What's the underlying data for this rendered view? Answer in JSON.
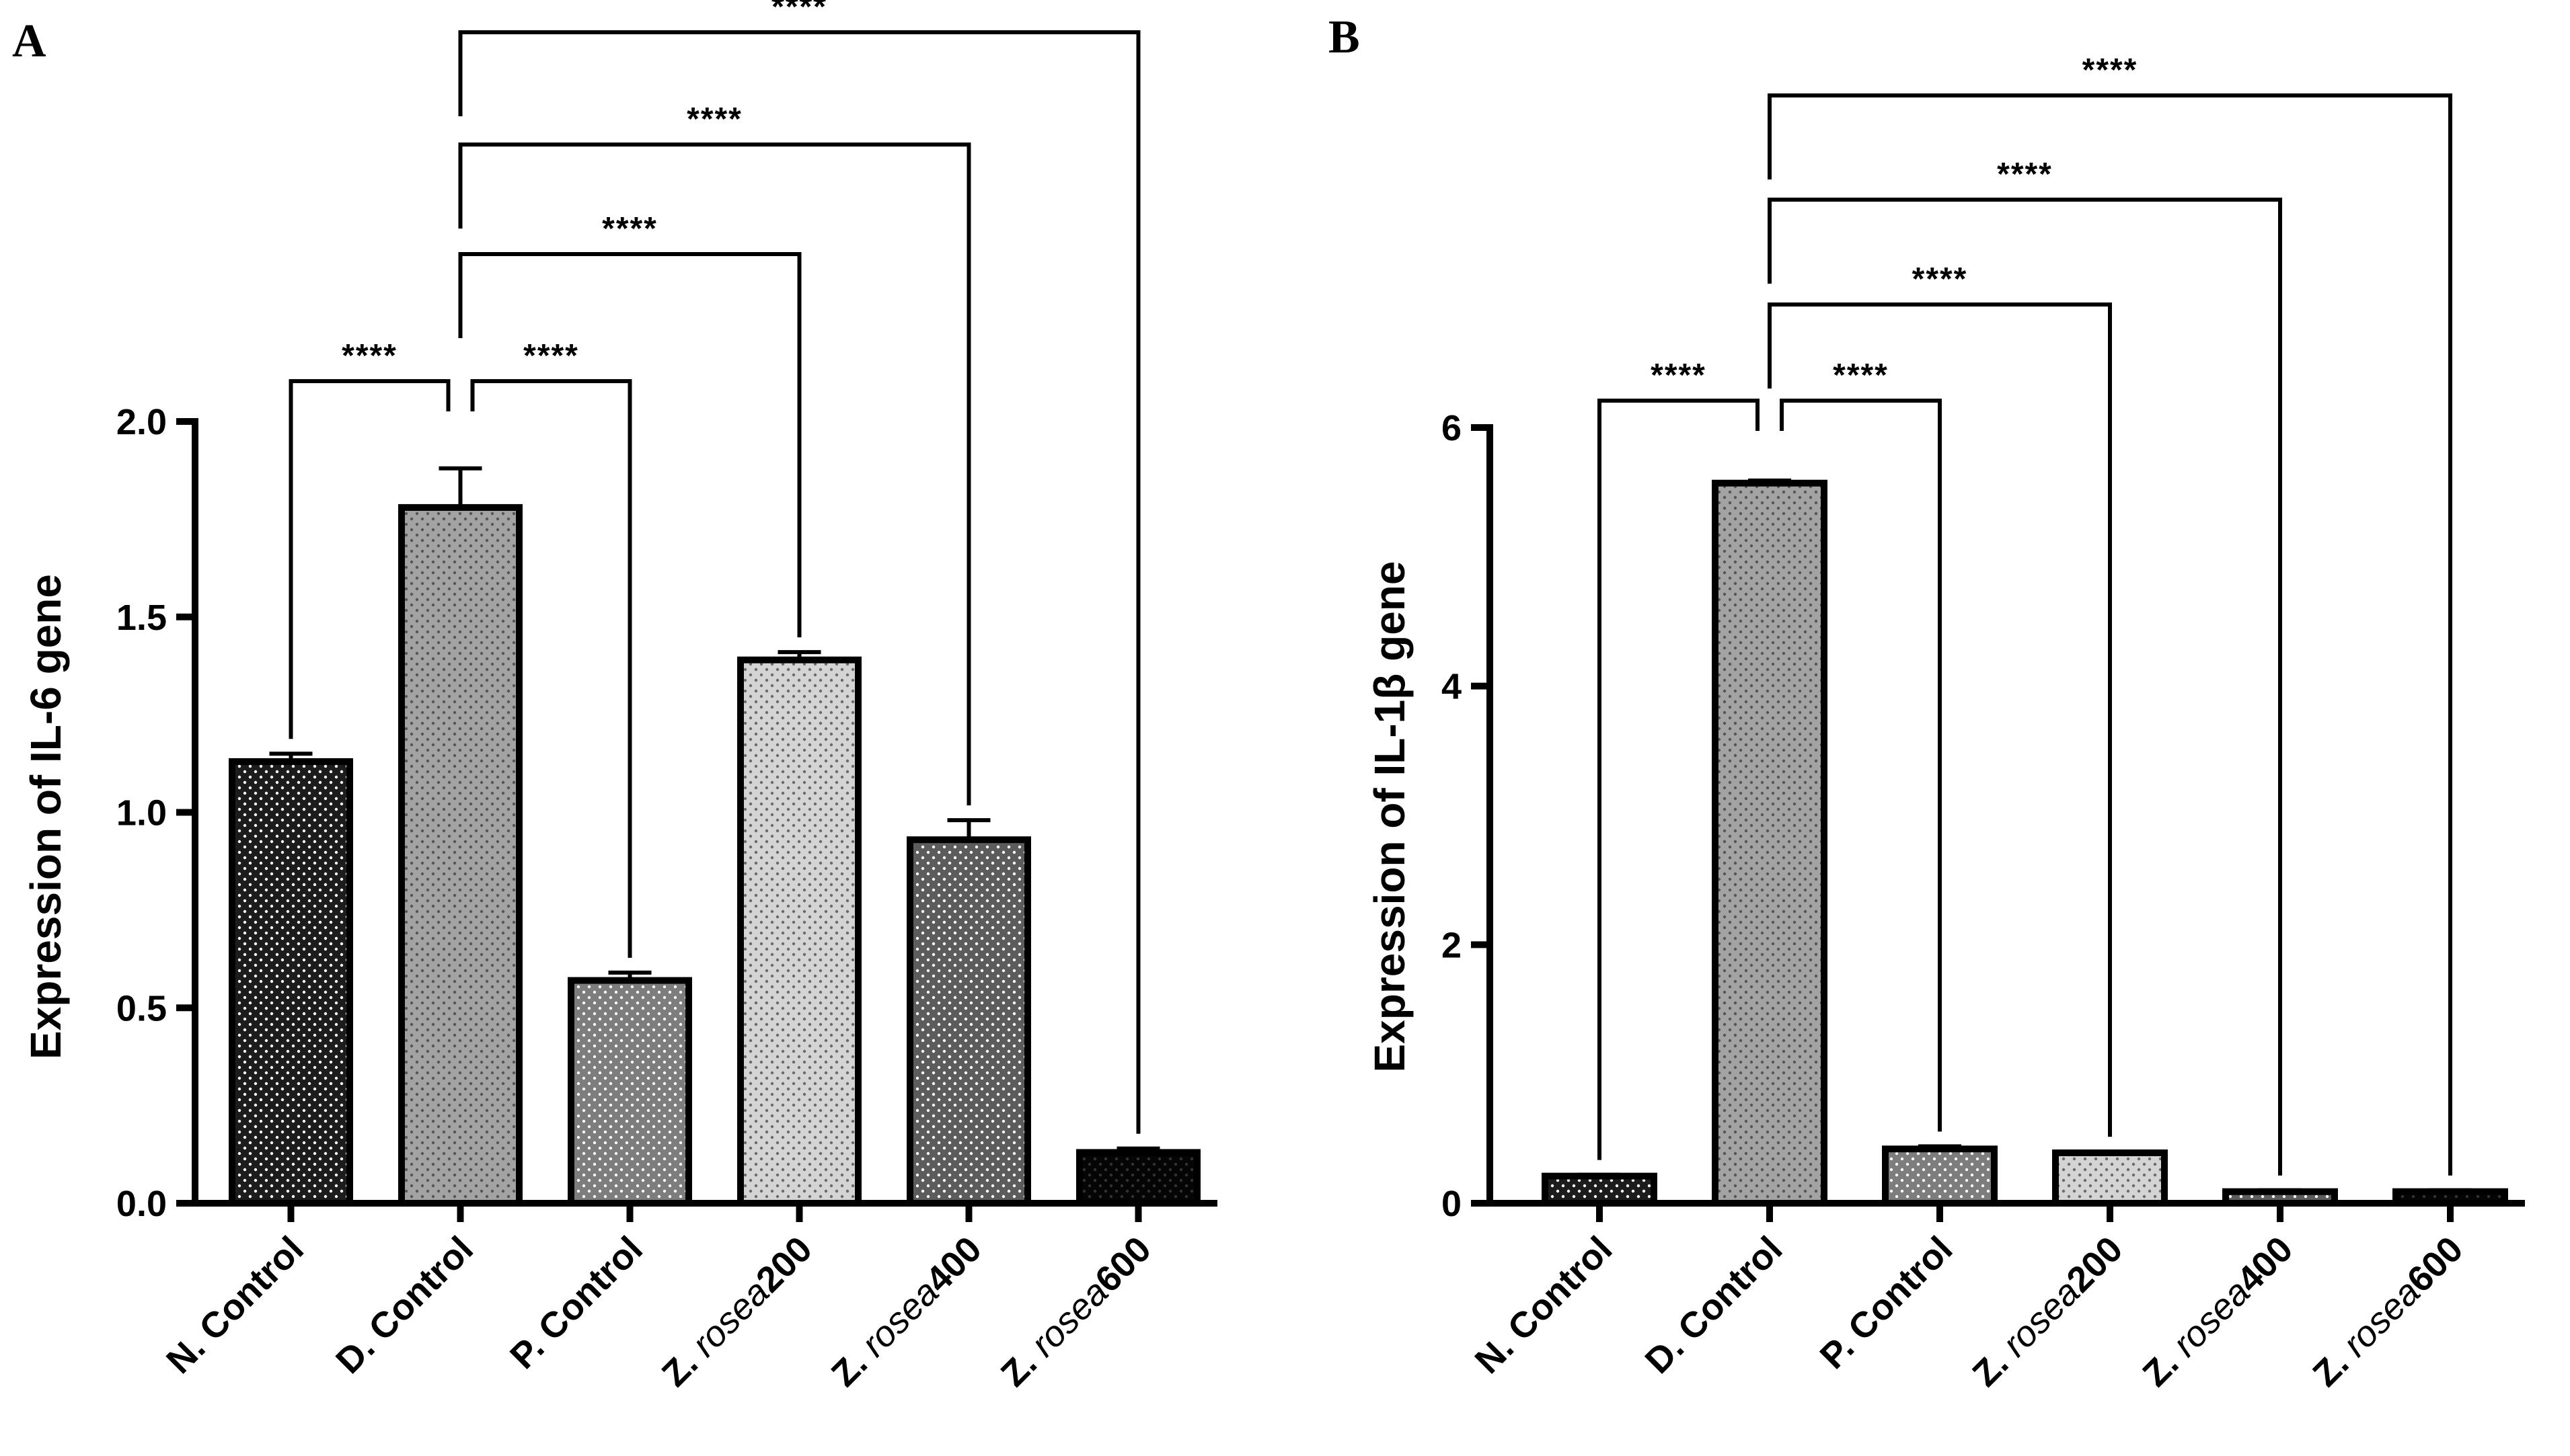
{
  "chart_data": [
    {
      "panel": "A",
      "type": "bar",
      "ylabel": "Expression of IL-6 gene",
      "ylim": [
        0,
        2.0
      ],
      "yticks": [
        "0.0",
        "0.5",
        "1.0",
        "1.5",
        "2.0"
      ],
      "categories": [
        {
          "prefix": "N. Control",
          "italic": "",
          "suffix": ""
        },
        {
          "prefix": "D. Control",
          "italic": "",
          "suffix": ""
        },
        {
          "prefix": "P. Control",
          "italic": "",
          "suffix": ""
        },
        {
          "prefix": "Z. ",
          "italic": "rosea",
          "suffix": "200"
        },
        {
          "prefix": "Z. ",
          "italic": "rosea",
          "suffix": "400"
        },
        {
          "prefix": "Z. ",
          "italic": "rosea",
          "suffix": "600"
        }
      ],
      "values": [
        1.13,
        1.78,
        0.57,
        1.39,
        0.93,
        0.13
      ],
      "errors": [
        0.02,
        0.1,
        0.02,
        0.02,
        0.05,
        0.01
      ],
      "bar_colors": [
        "#1c1c1c",
        "#a3a3a3",
        "#7d7d7d",
        "#d4d4d4",
        "#5c5c5c",
        "#050505"
      ],
      "dot_colors": [
        "#ffffff",
        "#555555",
        "#ffffff",
        "#6a6a6a",
        "#ffffff",
        "#333333"
      ],
      "comparisons": [
        {
          "from": 0,
          "to": 1,
          "label": "****"
        },
        {
          "from": 1,
          "to": 2,
          "label": "****"
        },
        {
          "from": 1,
          "to": 3,
          "label": "****"
        },
        {
          "from": 1,
          "to": 4,
          "label": "****"
        },
        {
          "from": 1,
          "to": 5,
          "label": "****"
        }
      ]
    },
    {
      "panel": "B",
      "type": "bar",
      "ylabel": "Expression of IL-1β gene",
      "ylim": [
        0,
        6
      ],
      "yticks": [
        "0",
        "2",
        "4",
        "6"
      ],
      "categories": [
        {
          "prefix": "N. Control",
          "italic": "",
          "suffix": ""
        },
        {
          "prefix": "D. Control",
          "italic": "",
          "suffix": ""
        },
        {
          "prefix": "P. Control",
          "italic": "",
          "suffix": ""
        },
        {
          "prefix": "Z. ",
          "italic": "rosea",
          "suffix": "200"
        },
        {
          "prefix": "Z. ",
          "italic": "rosea",
          "suffix": "400"
        },
        {
          "prefix": "Z. ",
          "italic": "rosea",
          "suffix": "600"
        }
      ],
      "values": [
        0.21,
        5.57,
        0.42,
        0.39,
        0.09,
        0.09
      ],
      "errors": [
        0.01,
        0.02,
        0.02,
        0.01,
        0.01,
        0.01
      ],
      "bar_colors": [
        "#1c1c1c",
        "#a3a3a3",
        "#7d7d7d",
        "#d4d4d4",
        "#5c5c5c",
        "#050505"
      ],
      "dot_colors": [
        "#ffffff",
        "#555555",
        "#ffffff",
        "#6a6a6a",
        "#ffffff",
        "#333333"
      ],
      "comparisons": [
        {
          "from": 0,
          "to": 1,
          "label": "****"
        },
        {
          "from": 1,
          "to": 2,
          "label": "****"
        },
        {
          "from": 1,
          "to": 3,
          "label": "****"
        },
        {
          "from": 1,
          "to": 4,
          "label": "****"
        },
        {
          "from": 1,
          "to": 5,
          "label": "****"
        }
      ]
    }
  ]
}
